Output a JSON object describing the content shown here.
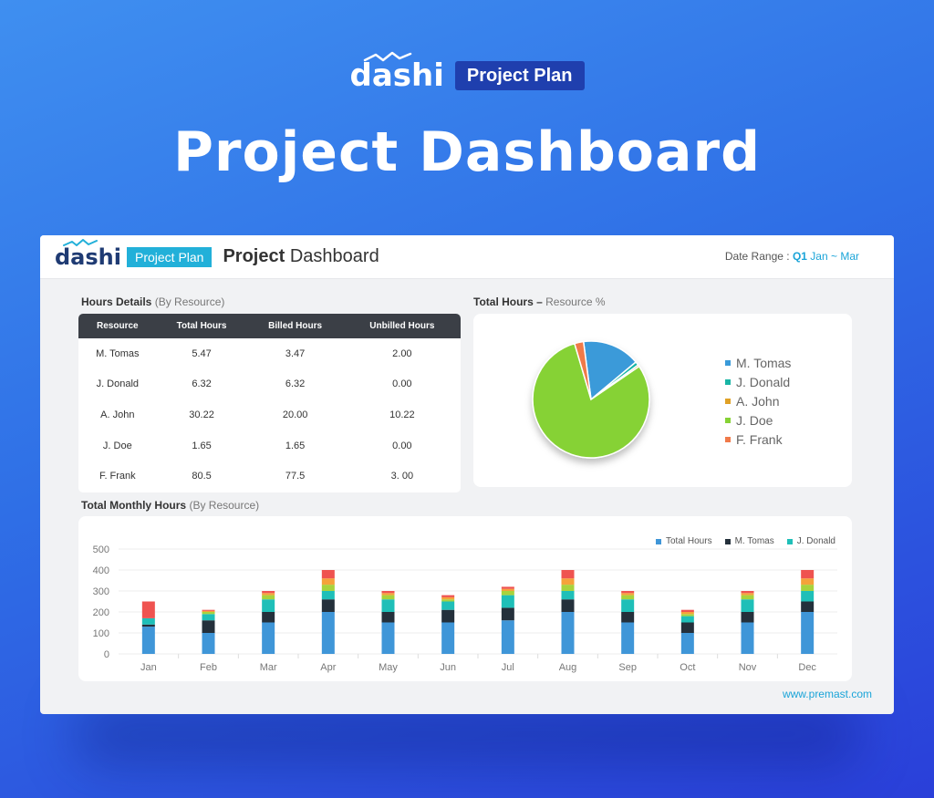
{
  "brand": {
    "logo": "dashi",
    "badge": "Project Plan"
  },
  "hero_title": "Project Dashboard",
  "header": {
    "logo": "dashi",
    "badge": "Project Plan",
    "title_bold": "Project",
    "title_rest": "Dashboard",
    "date_label": "Date Range :",
    "date_quarter": "Q1",
    "date_months": "Jan ~ Mar"
  },
  "hours_details": {
    "title": "Hours Details",
    "subtitle": "(By Resource)",
    "columns": [
      "Resource",
      "Total Hours",
      "Billed Hours",
      "Unbilled Hours"
    ],
    "rows": [
      [
        "M. Tomas",
        "5.47",
        "3.47",
        "2.00"
      ],
      [
        "J. Donald",
        "6.32",
        "6.32",
        "0.00"
      ],
      [
        "A. John",
        "30.22",
        "20.00",
        "10.22"
      ],
      [
        "J. Doe",
        "1.65",
        "1.65",
        "0.00"
      ],
      [
        "F. Frank",
        "80.5",
        "77.5",
        "3. 00"
      ]
    ]
  },
  "pie_section": {
    "title": "Total Hours –",
    "subtitle": "Resource %"
  },
  "monthly_section": {
    "title": "Total Monthly Hours",
    "subtitle": "(By Resource)"
  },
  "footer_url": "www.premast.com",
  "chart_data": [
    {
      "type": "pie",
      "title": "",
      "labels": [
        "M. Tomas",
        "J. Donald",
        "A. John",
        "J. Doe",
        "F. Frank"
      ],
      "values": [
        16,
        1,
        0.5,
        80,
        2.5
      ],
      "colors": [
        "#3a9ad9",
        "#19b5a5",
        "#e0a126",
        "#86d235",
        "#f07a4a"
      ],
      "legend_position": "right"
    },
    {
      "type": "bar",
      "stacked": true,
      "title": "",
      "categories": [
        "Jan",
        "Feb",
        "Mar",
        "Apr",
        "May",
        "Jun",
        "Jul",
        "Aug",
        "Sep",
        "Oct",
        "Nov",
        "Dec"
      ],
      "series": [
        {
          "name": "Total Hours",
          "color": "#3f96d8",
          "values": [
            130,
            100,
            150,
            200,
            150,
            150,
            160,
            200,
            150,
            100,
            150,
            200
          ]
        },
        {
          "name": "M. Tomas",
          "color": "#24303b",
          "values": [
            10,
            60,
            50,
            60,
            50,
            60,
            60,
            60,
            50,
            50,
            50,
            50
          ]
        },
        {
          "name": "J. Donald",
          "color": "#1fbfb8",
          "values": [
            30,
            30,
            60,
            40,
            60,
            40,
            60,
            40,
            60,
            30,
            60,
            50
          ]
        },
        {
          "name": "",
          "color": "#a8d33d",
          "values": [
            0,
            10,
            20,
            30,
            20,
            10,
            20,
            30,
            20,
            10,
            20,
            30
          ]
        },
        {
          "name": "",
          "color": "#f5a23a",
          "values": [
            0,
            5,
            10,
            30,
            10,
            10,
            10,
            30,
            10,
            10,
            10,
            30
          ]
        },
        {
          "name": "",
          "color": "#ef5350",
          "values": [
            80,
            5,
            10,
            40,
            10,
            10,
            10,
            40,
            10,
            10,
            10,
            40
          ]
        }
      ],
      "y_ticks": [
        0,
        100,
        200,
        300,
        400,
        500
      ],
      "ylim": [
        0,
        500
      ],
      "grid": true,
      "legend_position": "top-right"
    }
  ]
}
